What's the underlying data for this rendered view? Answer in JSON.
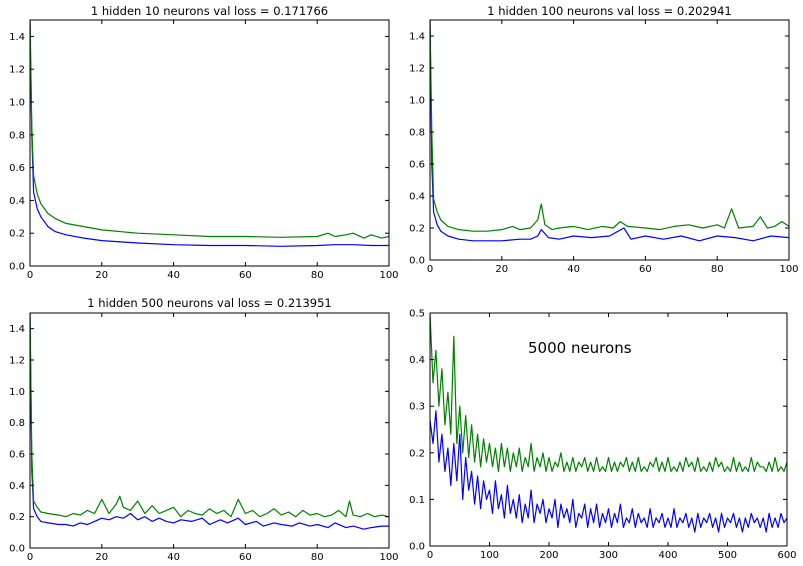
{
  "colors": {
    "train": "#0000ff",
    "validation": "#008000",
    "frame": "#000000",
    "background": "#ffffff"
  },
  "chart_data": [
    {
      "type": "line",
      "title": "1 hidden 10 neurons val loss = 0.171766",
      "xlim": [
        0,
        100
      ],
      "ylim": [
        0,
        1.5
      ],
      "xticks": [
        0,
        20,
        40,
        60,
        80,
        100
      ],
      "xtick_labels": [
        "0",
        "20",
        "40",
        "60",
        "80",
        "100"
      ],
      "yticks": [
        0,
        0.2,
        0.4,
        0.6,
        0.8,
        1.0,
        1.2,
        1.4
      ],
      "ytick_labels": [
        "0.0",
        "0.2",
        "0.4",
        "0.6",
        "0.8",
        "1.0",
        "1.2",
        "1.4"
      ],
      "grid": false,
      "series": [
        {
          "color": "#0000ff",
          "x": [
            0,
            0.5,
            1,
            2,
            3,
            4,
            5,
            7,
            10,
            15,
            20,
            30,
            40,
            50,
            60,
            70,
            80,
            85,
            90,
            95,
            100
          ],
          "values": [
            1.5,
            0.8,
            0.45,
            0.35,
            0.3,
            0.27,
            0.24,
            0.21,
            0.19,
            0.17,
            0.155,
            0.14,
            0.13,
            0.125,
            0.125,
            0.12,
            0.125,
            0.13,
            0.13,
            0.125,
            0.125
          ]
        },
        {
          "color": "#008000",
          "x": [
            0,
            0.5,
            1,
            2,
            3,
            4,
            5,
            7,
            10,
            15,
            20,
            30,
            40,
            50,
            60,
            70,
            80,
            83,
            85,
            88,
            90,
            93,
            95,
            98,
            100
          ],
          "values": [
            1.5,
            0.85,
            0.55,
            0.44,
            0.38,
            0.35,
            0.32,
            0.29,
            0.26,
            0.24,
            0.22,
            0.2,
            0.19,
            0.18,
            0.18,
            0.175,
            0.18,
            0.2,
            0.18,
            0.19,
            0.2,
            0.17,
            0.19,
            0.17,
            0.18
          ]
        }
      ]
    },
    {
      "type": "line",
      "title": "1 hidden 100 neurons val loss = 0.202941",
      "xlim": [
        0,
        100
      ],
      "ylim": [
        0,
        1.5
      ],
      "xticks": [
        0,
        20,
        40,
        60,
        80,
        100
      ],
      "xtick_labels": [
        "0",
        "20",
        "40",
        "60",
        "80",
        "100"
      ],
      "yticks": [
        0,
        0.2,
        0.4,
        0.6,
        0.8,
        1.0,
        1.2,
        1.4
      ],
      "ytick_labels": [
        "0.0",
        "0.2",
        "0.4",
        "0.6",
        "0.8",
        "1.0",
        "1.2",
        "1.4"
      ],
      "grid": false,
      "series": [
        {
          "color": "#0000ff",
          "x": [
            0,
            0.5,
            1,
            2,
            3,
            5,
            8,
            12,
            16,
            20,
            25,
            28,
            30,
            31,
            33,
            36,
            40,
            45,
            50,
            54,
            56,
            60,
            65,
            70,
            75,
            80,
            85,
            90,
            95,
            100
          ],
          "values": [
            1.5,
            0.6,
            0.3,
            0.22,
            0.18,
            0.15,
            0.13,
            0.12,
            0.12,
            0.12,
            0.13,
            0.13,
            0.15,
            0.19,
            0.14,
            0.13,
            0.15,
            0.14,
            0.15,
            0.2,
            0.13,
            0.15,
            0.13,
            0.15,
            0.12,
            0.15,
            0.14,
            0.12,
            0.15,
            0.14
          ]
        },
        {
          "color": "#008000",
          "x": [
            0,
            0.5,
            1,
            2,
            3,
            5,
            8,
            12,
            16,
            20,
            23,
            25,
            28,
            30,
            31,
            32,
            34,
            36,
            40,
            44,
            48,
            51,
            53,
            55,
            60,
            64,
            68,
            72,
            76,
            80,
            82,
            84,
            86,
            90,
            92,
            94,
            96,
            98,
            100
          ],
          "values": [
            1.5,
            0.8,
            0.38,
            0.3,
            0.25,
            0.21,
            0.19,
            0.18,
            0.18,
            0.19,
            0.21,
            0.19,
            0.2,
            0.25,
            0.35,
            0.22,
            0.19,
            0.2,
            0.21,
            0.19,
            0.21,
            0.2,
            0.24,
            0.21,
            0.2,
            0.19,
            0.21,
            0.22,
            0.2,
            0.22,
            0.2,
            0.32,
            0.2,
            0.21,
            0.27,
            0.2,
            0.21,
            0.24,
            0.21
          ]
        }
      ]
    },
    {
      "type": "line",
      "title": "1 hidden 500 neurons val loss = 0.213951",
      "xlim": [
        0,
        100
      ],
      "ylim": [
        0,
        1.5
      ],
      "xticks": [
        0,
        20,
        40,
        60,
        80,
        100
      ],
      "xtick_labels": [
        "0",
        "20",
        "40",
        "60",
        "80",
        "100"
      ],
      "yticks": [
        0,
        0.2,
        0.4,
        0.6,
        0.8,
        1.0,
        1.2,
        1.4
      ],
      "ytick_labels": [
        "0.0",
        "0.2",
        "0.4",
        "0.6",
        "0.8",
        "1.0",
        "1.2",
        "1.4"
      ],
      "grid": false,
      "series": [
        {
          "color": "#0000ff",
          "x": [
            0,
            0.5,
            1,
            2,
            3,
            5,
            8,
            10,
            12,
            14,
            16,
            18,
            20,
            22,
            24,
            26,
            28,
            30,
            32,
            34,
            36,
            38,
            40,
            42,
            45,
            48,
            50,
            53,
            55,
            58,
            60,
            63,
            65,
            68,
            70,
            73,
            75,
            78,
            80,
            83,
            85,
            88,
            90,
            93,
            95,
            98,
            100
          ],
          "values": [
            1.5,
            0.5,
            0.25,
            0.2,
            0.17,
            0.16,
            0.15,
            0.15,
            0.14,
            0.16,
            0.15,
            0.17,
            0.19,
            0.18,
            0.2,
            0.19,
            0.22,
            0.18,
            0.2,
            0.17,
            0.19,
            0.17,
            0.16,
            0.18,
            0.17,
            0.19,
            0.15,
            0.18,
            0.16,
            0.19,
            0.15,
            0.17,
            0.14,
            0.16,
            0.15,
            0.14,
            0.16,
            0.14,
            0.15,
            0.13,
            0.16,
            0.13,
            0.14,
            0.12,
            0.13,
            0.14,
            0.14
          ]
        },
        {
          "color": "#008000",
          "x": [
            0,
            0.5,
            1,
            2,
            3,
            5,
            8,
            10,
            12,
            14,
            16,
            18,
            20,
            22,
            24,
            25,
            26,
            28,
            30,
            32,
            34,
            36,
            38,
            40,
            42,
            44,
            46,
            48,
            50,
            52,
            54,
            56,
            58,
            60,
            62,
            64,
            66,
            68,
            70,
            72,
            74,
            76,
            78,
            80,
            82,
            84,
            86,
            88,
            89,
            90,
            92,
            94,
            96,
            98,
            100
          ],
          "values": [
            1.5,
            0.6,
            0.3,
            0.26,
            0.23,
            0.22,
            0.21,
            0.2,
            0.22,
            0.21,
            0.24,
            0.22,
            0.31,
            0.22,
            0.28,
            0.33,
            0.26,
            0.24,
            0.3,
            0.22,
            0.27,
            0.22,
            0.24,
            0.26,
            0.2,
            0.24,
            0.22,
            0.21,
            0.25,
            0.22,
            0.24,
            0.2,
            0.31,
            0.22,
            0.24,
            0.2,
            0.22,
            0.25,
            0.21,
            0.23,
            0.2,
            0.24,
            0.21,
            0.22,
            0.2,
            0.21,
            0.24,
            0.2,
            0.3,
            0.21,
            0.2,
            0.22,
            0.2,
            0.21,
            0.2
          ]
        }
      ]
    },
    {
      "type": "line",
      "title": "",
      "annotation": "5000 neurons",
      "xlim": [
        0,
        600
      ],
      "ylim": [
        0,
        0.5
      ],
      "xticks": [
        0,
        100,
        200,
        300,
        400,
        500,
        600
      ],
      "xtick_labels": [
        "0",
        "100",
        "200",
        "300",
        "400",
        "500",
        "600"
      ],
      "yticks": [
        0,
        0.1,
        0.2,
        0.3,
        0.4,
        0.5
      ],
      "ytick_labels": [
        "0.0",
        "0.1",
        "0.2",
        "0.3",
        "0.4",
        "0.5"
      ],
      "grid": false,
      "series": [
        {
          "color": "#0000ff",
          "x": [
            0,
            5,
            10,
            15,
            20,
            25,
            30,
            35,
            40,
            45,
            50,
            55,
            60,
            65,
            70,
            75,
            80,
            85,
            90,
            95,
            100,
            105,
            110,
            115,
            120,
            125,
            130,
            135,
            140,
            145,
            150,
            155,
            160,
            165,
            170,
            175,
            180,
            185,
            190,
            195,
            200,
            205,
            210,
            215,
            220,
            225,
            230,
            235,
            240,
            245,
            250,
            255,
            260,
            265,
            270,
            275,
            280,
            285,
            290,
            295,
            300,
            305,
            310,
            315,
            320,
            325,
            330,
            335,
            340,
            345,
            350,
            355,
            360,
            365,
            370,
            375,
            380,
            385,
            390,
            395,
            400,
            405,
            410,
            415,
            420,
            425,
            430,
            435,
            440,
            445,
            450,
            455,
            460,
            465,
            470,
            475,
            480,
            485,
            490,
            495,
            500,
            505,
            510,
            515,
            520,
            525,
            530,
            535,
            540,
            545,
            550,
            555,
            560,
            565,
            570,
            575,
            580,
            585,
            590,
            595,
            600
          ],
          "values": [
            0.27,
            0.22,
            0.29,
            0.18,
            0.24,
            0.16,
            0.21,
            0.13,
            0.22,
            0.14,
            0.24,
            0.1,
            0.19,
            0.12,
            0.16,
            0.09,
            0.15,
            0.08,
            0.14,
            0.1,
            0.12,
            0.07,
            0.14,
            0.08,
            0.11,
            0.06,
            0.13,
            0.07,
            0.1,
            0.06,
            0.11,
            0.05,
            0.09,
            0.06,
            0.12,
            0.05,
            0.09,
            0.07,
            0.1,
            0.05,
            0.08,
            0.06,
            0.1,
            0.04,
            0.09,
            0.06,
            0.08,
            0.05,
            0.1,
            0.04,
            0.07,
            0.06,
            0.09,
            0.04,
            0.08,
            0.05,
            0.09,
            0.04,
            0.07,
            0.05,
            0.08,
            0.04,
            0.07,
            0.05,
            0.09,
            0.04,
            0.06,
            0.05,
            0.08,
            0.04,
            0.07,
            0.05,
            0.06,
            0.04,
            0.08,
            0.04,
            0.06,
            0.05,
            0.07,
            0.04,
            0.06,
            0.04,
            0.08,
            0.04,
            0.06,
            0.05,
            0.07,
            0.04,
            0.06,
            0.03,
            0.07,
            0.04,
            0.06,
            0.05,
            0.07,
            0.04,
            0.06,
            0.03,
            0.07,
            0.04,
            0.06,
            0.05,
            0.07,
            0.04,
            0.06,
            0.03,
            0.06,
            0.04,
            0.07,
            0.05,
            0.06,
            0.04,
            0.06,
            0.03,
            0.07,
            0.04,
            0.06,
            0.04,
            0.07,
            0.05,
            0.06
          ]
        },
        {
          "color": "#008000",
          "x": [
            0,
            5,
            10,
            15,
            20,
            25,
            30,
            35,
            40,
            45,
            50,
            55,
            60,
            65,
            70,
            75,
            80,
            85,
            90,
            95,
            100,
            105,
            110,
            115,
            120,
            125,
            130,
            135,
            140,
            145,
            150,
            155,
            160,
            165,
            170,
            175,
            180,
            185,
            190,
            195,
            200,
            205,
            210,
            215,
            220,
            225,
            230,
            235,
            240,
            245,
            250,
            255,
            260,
            265,
            270,
            275,
            280,
            285,
            290,
            295,
            300,
            305,
            310,
            315,
            320,
            325,
            330,
            335,
            340,
            345,
            350,
            355,
            360,
            365,
            370,
            375,
            380,
            385,
            390,
            395,
            400,
            405,
            410,
            415,
            420,
            425,
            430,
            435,
            440,
            445,
            450,
            455,
            460,
            465,
            470,
            475,
            480,
            485,
            490,
            495,
            500,
            505,
            510,
            515,
            520,
            525,
            530,
            535,
            540,
            545,
            550,
            555,
            560,
            565,
            570,
            575,
            580,
            585,
            590,
            595,
            600
          ],
          "values": [
            0.5,
            0.35,
            0.42,
            0.3,
            0.38,
            0.26,
            0.33,
            0.24,
            0.45,
            0.22,
            0.3,
            0.2,
            0.28,
            0.19,
            0.26,
            0.18,
            0.24,
            0.17,
            0.23,
            0.18,
            0.22,
            0.17,
            0.21,
            0.16,
            0.22,
            0.17,
            0.21,
            0.16,
            0.2,
            0.17,
            0.21,
            0.16,
            0.19,
            0.17,
            0.22,
            0.16,
            0.19,
            0.17,
            0.2,
            0.16,
            0.19,
            0.16,
            0.18,
            0.17,
            0.2,
            0.16,
            0.18,
            0.16,
            0.19,
            0.16,
            0.18,
            0.17,
            0.19,
            0.16,
            0.18,
            0.16,
            0.19,
            0.16,
            0.17,
            0.16,
            0.19,
            0.16,
            0.18,
            0.16,
            0.18,
            0.17,
            0.19,
            0.16,
            0.18,
            0.16,
            0.19,
            0.16,
            0.17,
            0.16,
            0.18,
            0.17,
            0.19,
            0.16,
            0.18,
            0.16,
            0.19,
            0.16,
            0.17,
            0.16,
            0.18,
            0.16,
            0.19,
            0.17,
            0.18,
            0.16,
            0.19,
            0.16,
            0.17,
            0.16,
            0.18,
            0.16,
            0.19,
            0.17,
            0.18,
            0.16,
            0.17,
            0.16,
            0.19,
            0.16,
            0.18,
            0.16,
            0.17,
            0.16,
            0.19,
            0.16,
            0.18,
            0.17,
            0.17,
            0.16,
            0.18,
            0.16,
            0.19,
            0.16,
            0.17,
            0.16,
            0.18
          ]
        }
      ]
    }
  ]
}
